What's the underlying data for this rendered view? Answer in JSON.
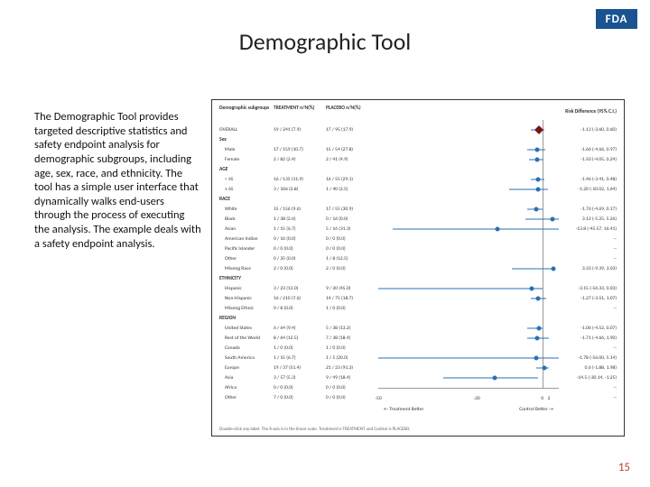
{
  "logo": {
    "text": "FDA",
    "bg": "#1a5490"
  },
  "title": "Demographic Tool",
  "body": "The Demographic Tool provides targeted descriptive statistics and safety endpoint analysis for demographic subgroups, including age, sex, race, and ethnicity. The tool has a simple user interface that dynamically walks end-users through the process of executing the analysis. The example deals with a safety endpoint analysis.",
  "page_number": "15",
  "chart": {
    "type": "forest-plot",
    "background_color": "#ffffff",
    "border_color": "#333333",
    "font_size_pt": 5.5,
    "heading_subgroup": "Demographic subgroups",
    "heading_treatment": "TREATMENT  n/N(%)",
    "heading_placebo": "PLACEBO  n/N(%)",
    "heading_ci": "Risk Difference (95% C.I.)",
    "axis": {
      "xmin": -50,
      "xmax": 5,
      "xcenter": 0,
      "ticks": [
        -50,
        -20,
        0,
        2
      ],
      "left_label": "← Treatment Better",
      "right_label": "Control Better →",
      "axis_color": "#999999"
    },
    "marker_color": "#2a6fb5",
    "whisker_color": "#2a6fb5",
    "pooled_color": "#7a1515",
    "rows": [
      {
        "group": "OVERALL",
        "treat": "19 / 241 (7.9)",
        "plac": "17 / 95 (17.9)",
        "ci": "-1.13 (-3.60, 0.60)",
        "rd": -1.13,
        "lo": -3.6,
        "hi": 0.6,
        "indent": 0,
        "pooled": true
      },
      {
        "group": "Sex",
        "header": true
      },
      {
        "group": "Male",
        "treat": "17 / 159 (10.7)",
        "plac": "15 / 54 (27.8)",
        "ci": "-1.66 (-4.66, 0.97)",
        "rd": -1.66,
        "lo": -4.66,
        "hi": 0.97,
        "indent": 1
      },
      {
        "group": "Female",
        "treat": "2 / 82 (2.4)",
        "plac": "2 / 41 (4.9)",
        "ci": "-1.50 (-4.05, 0.24)",
        "rd": -1.5,
        "lo": -4.05,
        "hi": 0.24,
        "indent": 1
      },
      {
        "group": "AGE",
        "header": true
      },
      {
        "group": "< 65",
        "treat": "16 / 135 (11.9)",
        "plac": "16 / 55 (29.1)",
        "ci": "-1.46 (-3.41, 0.48)",
        "rd": -1.46,
        "lo": -3.41,
        "hi": 0.48,
        "indent": 1
      },
      {
        "group": "≥ 65",
        "treat": "3 / 106 (2.8)",
        "plac": "1 / 40 (2.5)",
        "ci": "-1.20 (-10.02, 1.64)",
        "rd": -1.2,
        "lo": -10.02,
        "hi": 1.64,
        "indent": 1
      },
      {
        "group": "RACE",
        "header": true
      },
      {
        "group": "White",
        "treat": "15 / 156 (9.6)",
        "plac": "17 / 55 (30.9)",
        "ci": "-1.76 (-4.69, 0.17)",
        "rd": -1.76,
        "lo": -4.69,
        "hi": 0.17,
        "indent": 1
      },
      {
        "group": "Black",
        "treat": "1 / 38 (2.6)",
        "plac": "0 / 16 (0.0)",
        "ci": "3.12 (-5.25, 5.26)",
        "rd": 3.12,
        "lo": -5.25,
        "hi": 5.26,
        "indent": 1
      },
      {
        "group": "Asian",
        "treat": "1 / 15 (6.7)",
        "plac": "5 / 16 (31.3)",
        "ci": "-13.8 (-45.57, 16.41)",
        "rd": -13.8,
        "lo": -45.57,
        "hi": 16.41,
        "indent": 1
      },
      {
        "group": "American Indian",
        "treat": "0 / 16 (0.0)",
        "plac": "0 / 0 (0.0)",
        "ci": "--",
        "indent": 1
      },
      {
        "group": "Pacific Islander",
        "treat": "0 / 0 (0.0)",
        "plac": "0 / 0 (0.0)",
        "ci": "--",
        "indent": 1
      },
      {
        "group": "Other",
        "treat": "0 / 35 (0.0)",
        "plac": "1 / 8 (12.5)",
        "ci": "--",
        "indent": 1
      },
      {
        "group": "Missing Race",
        "treat": "2 / 0 (0.0)",
        "plac": "2 / 0 (0.0)",
        "ci": "3.33 (-9.39, 3.03)",
        "rd": 3.33,
        "lo": -9.39,
        "hi": 3.03,
        "indent": 1
      },
      {
        "group": "ETHNICITY",
        "header": true
      },
      {
        "group": "Hispanic",
        "treat": "3 / 23 (13.0)",
        "plac": "9 / 20 (45.0)",
        "ci": "-3.15 (-56.33, 0.03)",
        "rd": -3.15,
        "lo": -50.0,
        "hi": 0.03,
        "indent": 1
      },
      {
        "group": "Non-Hispanic",
        "treat": "16 / 210 (7.6)",
        "plac": "14 / 75 (18.7)",
        "ci": "-1.27 (-3.51, 1.07)",
        "rd": -1.27,
        "lo": -3.51,
        "hi": 1.07,
        "indent": 1
      },
      {
        "group": "Missing Ethnic",
        "treat": "0 / 8 (0.0)",
        "plac": "1 / 0 (0.0)",
        "ci": "--",
        "indent": 1
      },
      {
        "group": "REGION",
        "header": true
      },
      {
        "group": "United States",
        "treat": "6 / 64 (9.4)",
        "plac": "5 / 38 (13.2)",
        "ci": "-1.06 (-4.52, 0.07)",
        "rd": -1.06,
        "lo": -4.52,
        "hi": 0.07,
        "indent": 1
      },
      {
        "group": "Rest of the World",
        "treat": "8 / 64 (12.5)",
        "plac": "7 / 38 (18.4)",
        "ci": "-1.71 (-4.66, 1.90)",
        "rd": -1.71,
        "lo": -4.66,
        "hi": 1.9,
        "indent": 1
      },
      {
        "group": "Canada",
        "treat": "1 / 0 (0.0)",
        "plac": "1 / 0 (0.0)",
        "ci": "--",
        "indent": 1
      },
      {
        "group": "South America",
        "treat": "1 / 15 (6.7)",
        "plac": "1 / 5 (20.0)",
        "ci": "-1.78 (-56.00, 5.14)",
        "rd": -1.78,
        "lo": -50.0,
        "hi": 5.14,
        "indent": 1
      },
      {
        "group": "Europe",
        "treat": "19 / 37 (51.4)",
        "plac": "21 / 23 (91.3)",
        "ci": "0.6 (-1.88, 1.98)",
        "rd": 0.6,
        "lo": -1.88,
        "hi": 1.98,
        "indent": 1
      },
      {
        "group": "Asia",
        "treat": "3 / 57 (5.3)",
        "plac": "9 / 49 (18.4)",
        "ci": "-14.5 (-30.14, -1.25)",
        "rd": -14.5,
        "lo": -30.14,
        "hi": -1.25,
        "indent": 1
      },
      {
        "group": "Africa",
        "treat": "0 / 0 (0.0)",
        "plac": "0 / 0 (0.0)",
        "ci": "--",
        "indent": 1
      },
      {
        "group": "Other",
        "treat": "7 / 0 (0.0)",
        "plac": "0 / 0 (0.0)",
        "ci": "--",
        "indent": 1
      }
    ],
    "footnote": "Double-click any label.\nThe X-axis is in the linear scale.\nTreatment is TREATMENT and Control is PLACEBO."
  }
}
